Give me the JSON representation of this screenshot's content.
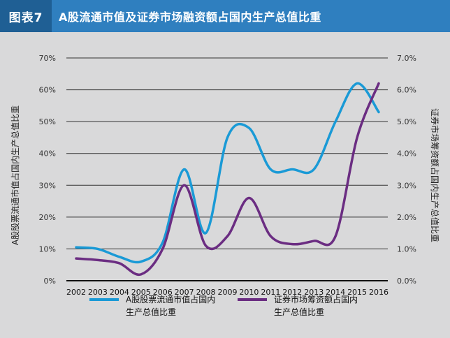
{
  "header": {
    "figure_tag": "图表7",
    "title": "A股流通市值及证券市场融资额占国内生产总值比重"
  },
  "chart_data": {
    "type": "line",
    "x": [
      2002,
      2003,
      2004,
      2005,
      2006,
      2007,
      2008,
      2009,
      2010,
      2011,
      2012,
      2013,
      2014,
      2015,
      2016
    ],
    "ylabel": "A股股票流通市值占国内生产总值比重",
    "y2label": "证券市场筹资额占国内生产总值比重",
    "ylim": [
      0,
      70
    ],
    "y2lim": [
      0,
      7
    ],
    "yticks": [
      "0%",
      "10%",
      "20%",
      "30%",
      "40%",
      "50%",
      "60%",
      "70%"
    ],
    "y2ticks": [
      "0.0%",
      "1.0%",
      "2.0%",
      "3.0%",
      "4.0%",
      "5.0%",
      "6.0%",
      "7.0%"
    ],
    "grid": true,
    "legend_position": "bottom",
    "series": [
      {
        "name": "A股股票流通市值占国内生产总值比重",
        "legend_lines": [
          "A股股票流通市值占国内",
          "生产总值比重"
        ],
        "axis": "left",
        "color": "#1a9ad6",
        "values": [
          10.5,
          10,
          7.5,
          6,
          12,
          35,
          15,
          45,
          48,
          35,
          35,
          35,
          50,
          62,
          53
        ]
      },
      {
        "name": "证券市场筹资额占国内生产总值比重",
        "legend_lines": [
          "证券市场筹资额占国内",
          "生产总值比重"
        ],
        "axis": "right",
        "color": "#6b2d82",
        "values": [
          0.7,
          0.65,
          0.55,
          0.2,
          1.0,
          3.0,
          1.1,
          1.4,
          2.6,
          1.4,
          1.15,
          1.25,
          1.4,
          4.5,
          6.2
        ]
      }
    ]
  }
}
